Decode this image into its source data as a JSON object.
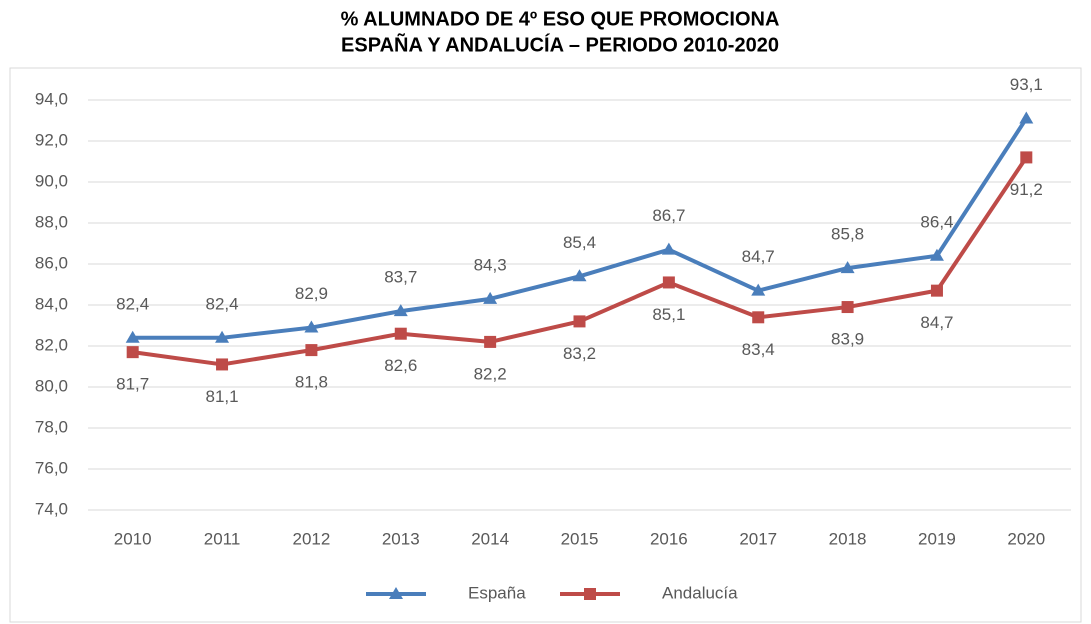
{
  "chart_data": {
    "type": "line",
    "title": [
      "% ALUMNADO DE 4º ESO QUE PROMOCIONA",
      "ESPAÑA Y ANDALUCÍA – PERIODO 2010-2020"
    ],
    "categories": [
      "2010",
      "2011",
      "2012",
      "2013",
      "2014",
      "2015",
      "2016",
      "2017",
      "2018",
      "2019",
      "2020"
    ],
    "series": [
      {
        "name": "España",
        "color": "#4a7ebb",
        "marker": "triangle",
        "values": [
          82.4,
          82.4,
          82.9,
          83.7,
          84.3,
          85.4,
          86.7,
          84.7,
          85.8,
          86.4,
          93.1
        ],
        "value_labels": [
          "82,4",
          "82,4",
          "82,9",
          "83,7",
          "84,3",
          "85,4",
          "86,7",
          "84,7",
          "85,8",
          "86,4",
          "93,1"
        ]
      },
      {
        "name": "Andalucía",
        "color": "#be4b48",
        "marker": "square",
        "values": [
          81.7,
          81.1,
          81.8,
          82.6,
          82.2,
          83.2,
          85.1,
          83.4,
          83.9,
          84.7,
          91.2
        ],
        "value_labels": [
          "81,7",
          "81,1",
          "81,8",
          "82,6",
          "82,2",
          "83,2",
          "85,1",
          "83,4",
          "83,9",
          "84,7",
          "91,2"
        ]
      }
    ],
    "ylim": [
      74,
      94
    ],
    "yticks": [
      {
        "value": 74,
        "label": "74,0"
      },
      {
        "value": 76,
        "label": "76,0"
      },
      {
        "value": 78,
        "label": "78,0"
      },
      {
        "value": 80,
        "label": "80,0"
      },
      {
        "value": 82,
        "label": "82,0"
      },
      {
        "value": 84,
        "label": "84,0"
      },
      {
        "value": 86,
        "label": "86,0"
      },
      {
        "value": 88,
        "label": "88,0"
      },
      {
        "value": 90,
        "label": "90,0"
      },
      {
        "value": 92,
        "label": "92,0"
      },
      {
        "value": 94,
        "label": "94,0"
      }
    ],
    "grid": true,
    "legend": "bottom"
  }
}
